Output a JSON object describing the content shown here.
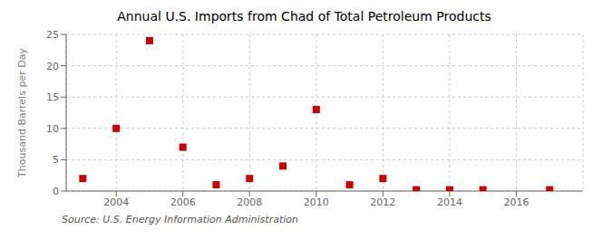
{
  "chart_data": {
    "type": "scatter",
    "title": "Annual U.S. Imports from Chad of Total Petroleum Products",
    "y_label": "Thousand Barrels per Day",
    "annotation": "Source: U.S. Energy Information Administration",
    "x": [
      2003,
      2004,
      2005,
      2006,
      2007,
      2008,
      2009,
      2010,
      2011,
      2012,
      2013,
      2014,
      2015,
      2017
    ],
    "values": [
      2,
      10,
      24,
      7,
      1,
      2,
      4,
      13,
      1,
      2,
      0.2,
      0.2,
      0.2,
      0.2
    ],
    "color": "#cc0000",
    "marker": "square",
    "xlim": [
      2002.5,
      2018
    ],
    "ylim": [
      0,
      25
    ],
    "xticks": [
      2004,
      2006,
      2008,
      2010,
      2012,
      2014,
      2016
    ],
    "yticks": [
      0,
      5,
      10,
      15,
      20,
      25
    ],
    "grid": true
  }
}
